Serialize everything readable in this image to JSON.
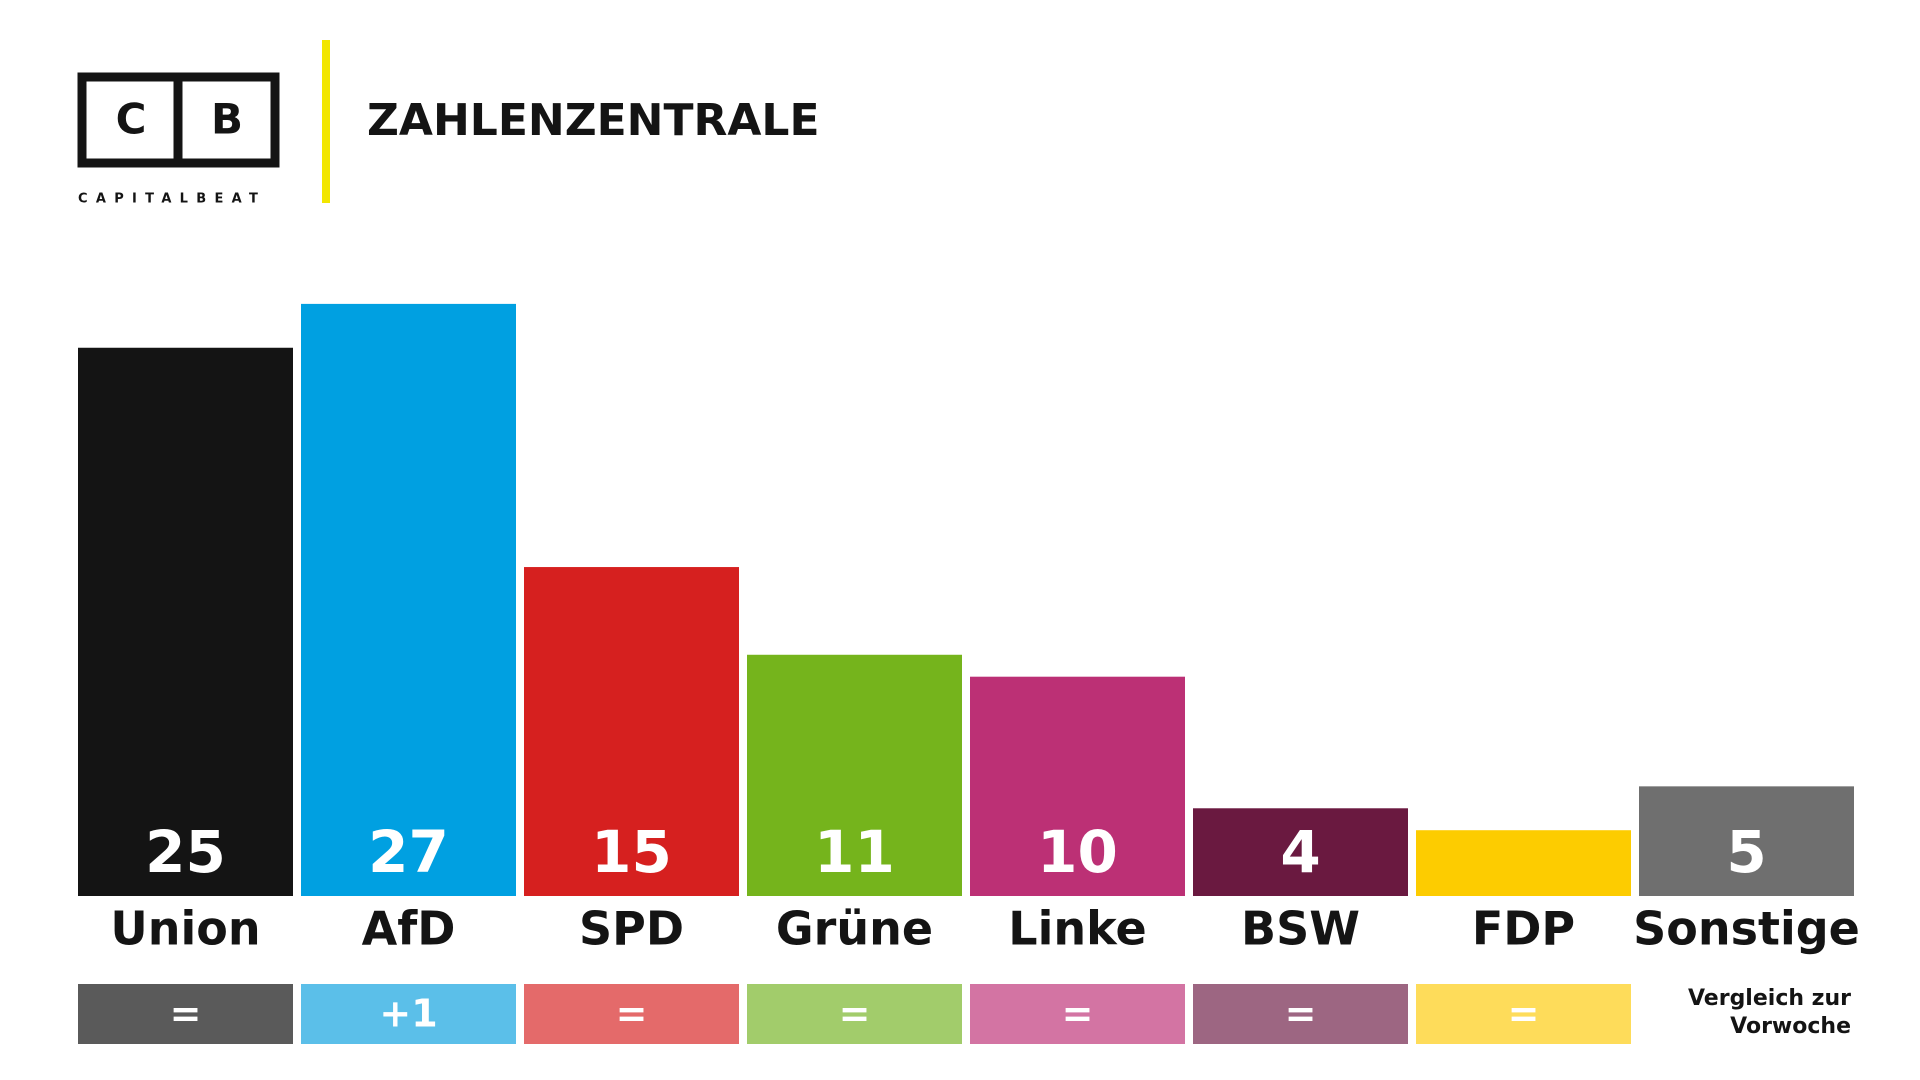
{
  "logo": {
    "left": "C",
    "right": "B",
    "wordmark": "CAPITALBEAT"
  },
  "chart_data": {
    "type": "bar",
    "title": "ZAHLENZENTRALE",
    "categories": [
      "Union",
      "AfD",
      "SPD",
      "Grüne",
      "Linke",
      "BSW",
      "FDP",
      "Sonstige"
    ],
    "values": [
      25,
      27,
      15,
      11,
      10,
      4,
      3,
      5
    ],
    "value_labels": [
      "25",
      "27",
      "15",
      "11",
      "10",
      "4",
      null,
      "5"
    ],
    "colors": [
      "#141414",
      "#00a0e1",
      "#d6201f",
      "#75b41c",
      "#bc3075",
      "#6a1940",
      "#fdcc00",
      "#6f6f6f"
    ],
    "changes": [
      "=",
      "+1",
      "=",
      "=",
      "=",
      "=",
      "=",
      null
    ],
    "change_colors": [
      "#5a5a5a",
      "#5bbfe9",
      "#e46a6a",
      "#a2cc6b",
      "#d374a3",
      "#9d6682",
      "#fedc5a",
      null
    ],
    "change_note": [
      "Vergleich zur",
      "Vorwoche"
    ]
  }
}
